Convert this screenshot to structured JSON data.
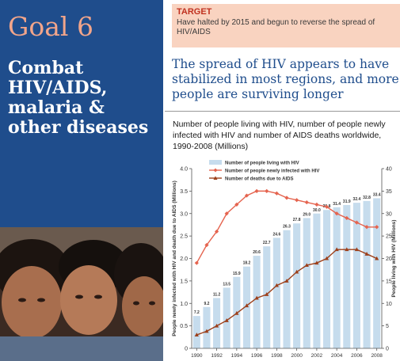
{
  "header": {
    "goal": "Goal 6",
    "subtitle_lines": [
      "Combat",
      "HIV/AIDS,",
      "malaria &",
      "other diseases"
    ]
  },
  "target": {
    "label": "TARGET",
    "text": "Have halted by 2015 and begun to reverse the spread of HIV/AIDS"
  },
  "headline": "The spread of HIV appears to have stabilized in most regions, and more people are surviving longer",
  "colors": {
    "panel_blue": "#1f4d8c",
    "goal_salmon": "#f2a58a",
    "target_bg": "#f9d3c0",
    "bar": "#c6dced",
    "infected_line": "#e5644f",
    "deaths_line": "#9c3f1a"
  },
  "chart_data": {
    "type": "bar+line",
    "title": "Number of people living with HIV, number of people newly infected with HIV and number of AIDS deaths worldwide, 1990-2008 (Millions)",
    "ylabel_left": "People newly infected with HIV and death due to AIDS (Millions)",
    "ylabel_right": "People living with HIV (Millions)",
    "ylim_left": [
      0,
      4.0
    ],
    "ylim_right": [
      0,
      40
    ],
    "left_ticks": [
      "0",
      "0.5",
      "1.0",
      "1.5",
      "2.0",
      "2.5",
      "3.0",
      "3.5",
      "4.0"
    ],
    "right_ticks": [
      "0",
      "5",
      "10",
      "15",
      "20",
      "25",
      "30",
      "35",
      "40"
    ],
    "x_ticks": [
      "1990",
      "1992",
      "1994",
      "1996",
      "1998",
      "2000",
      "2002",
      "2004",
      "2006",
      "2008"
    ],
    "years": [
      1990,
      1991,
      1992,
      1993,
      1994,
      1995,
      1996,
      1997,
      1998,
      1999,
      2000,
      2001,
      2002,
      2003,
      2004,
      2005,
      2006,
      2007,
      2008
    ],
    "series": [
      {
        "name": "Number of people living with HIV",
        "type": "bar",
        "axis": "right",
        "values": [
          7.2,
          9.2,
          11.2,
          13.5,
          15.9,
          18.2,
          20.6,
          22.7,
          24.6,
          26.3,
          27.8,
          29.0,
          30.0,
          30.8,
          31.4,
          31.9,
          32.4,
          32.8,
          33.4
        ],
        "labels": [
          "7.2",
          "9.2",
          "11.2",
          "13.5",
          "15.9",
          "18.2",
          "20.6",
          "22.7",
          "24.6",
          "26.3",
          "27.8",
          "29.0",
          "30.0",
          "30.8",
          "31.4",
          "31.9",
          "32.4",
          "32.8",
          "33.4"
        ]
      },
      {
        "name": "Number of people newly infected with HIV",
        "type": "line",
        "axis": "left",
        "values": [
          1.9,
          2.3,
          2.6,
          3.0,
          3.2,
          3.4,
          3.5,
          3.5,
          3.45,
          3.35,
          3.3,
          3.25,
          3.2,
          3.15,
          3.0,
          2.9,
          2.8,
          2.7,
          2.7
        ]
      },
      {
        "name": "Number of deaths due to AIDS",
        "type": "line",
        "axis": "left",
        "values": [
          0.3,
          0.38,
          0.5,
          0.62,
          0.78,
          0.95,
          1.12,
          1.2,
          1.4,
          1.5,
          1.7,
          1.85,
          1.9,
          2.0,
          2.2,
          2.2,
          2.2,
          2.1,
          2.0
        ]
      }
    ]
  }
}
